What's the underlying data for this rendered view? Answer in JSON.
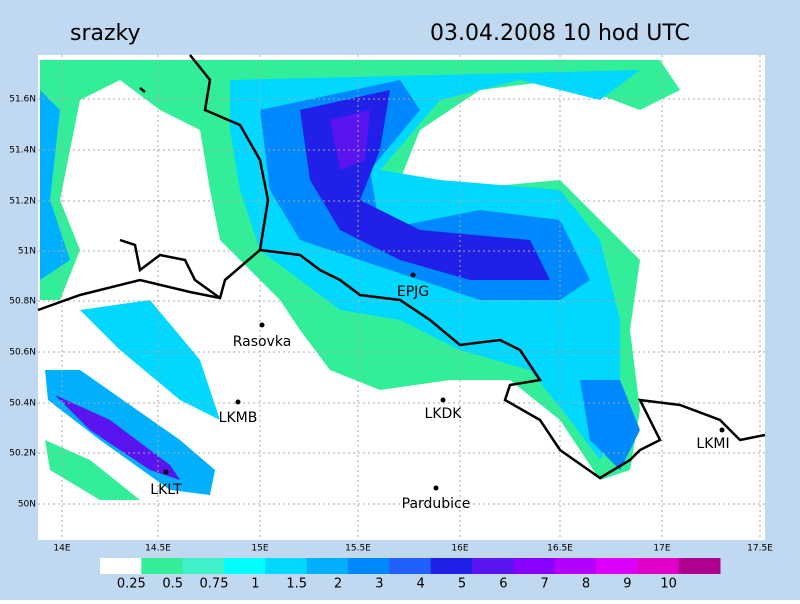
{
  "header": {
    "title": "srazky",
    "datetime": "03.04.2008   10 hod UTC"
  },
  "map": {
    "lat_labels": [
      "51.6N",
      "51.4N",
      "51.2N",
      "51N",
      "50.8N",
      "50.6N",
      "50.4N",
      "50.2N",
      "50N"
    ],
    "lon_labels": [
      "14E",
      "14.5E",
      "15E",
      "15.5E",
      "16E",
      "16.5E",
      "17E",
      "17.5E"
    ],
    "stations": [
      {
        "label": "EPJG"
      },
      {
        "label": "Rasovka"
      },
      {
        "label": "LKMB"
      },
      {
        "label": "LKDK"
      },
      {
        "label": "LKMI"
      },
      {
        "label": "LKLT"
      },
      {
        "label": "Pardubice"
      }
    ]
  },
  "colorbar": {
    "labels": [
      "0.25",
      "0.5",
      "0.75",
      "1",
      "1.5",
      "2",
      "3",
      "4",
      "5",
      "6",
      "7",
      "8",
      "9",
      "10"
    ],
    "colors": [
      "#ffffff",
      "#33ee99",
      "#40f0c8",
      "#00ffff",
      "#00d8ff",
      "#00b0ff",
      "#0088ff",
      "#2060ff",
      "#2020e8",
      "#5a14f0",
      "#8a00ff",
      "#b400ff",
      "#dc00ff",
      "#e000c8",
      "#b00090"
    ]
  }
}
